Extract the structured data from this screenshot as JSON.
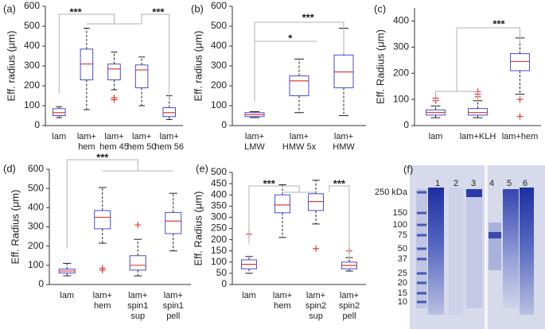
{
  "chart_data": [
    {
      "type": "box",
      "label": "(a)",
      "ylabel": "Eff. radius (μm)",
      "box_color": "#4a4ad8",
      "median_color": "#e33b3b",
      "categories": [
        "lam",
        "lam+\nhem",
        "lam+\nhem 45",
        "lam+\nhem 50",
        "lam+\nhem 56"
      ],
      "ylim": [
        0,
        600
      ],
      "yticks": [
        0,
        100,
        200,
        300,
        400,
        500,
        600
      ],
      "annotations": [
        "***",
        "***"
      ],
      "boxes": [
        {
          "whisker_low": 40,
          "q1": 50,
          "median": 65,
          "q3": 85,
          "whisker_high": 95,
          "outliers": []
        },
        {
          "whisker_low": 80,
          "q1": 230,
          "median": 310,
          "q3": 385,
          "whisker_high": 490,
          "outliers": []
        },
        {
          "whisker_low": 180,
          "q1": 230,
          "median": 285,
          "q3": 310,
          "whisker_high": 370,
          "outliers": [
            130,
            140
          ]
        },
        {
          "whisker_low": 100,
          "q1": 190,
          "median": 280,
          "q3": 305,
          "whisker_high": 345,
          "outliers": []
        },
        {
          "whisker_low": 30,
          "q1": 45,
          "median": 65,
          "q3": 90,
          "whisker_high": 150,
          "outliers": []
        }
      ]
    },
    {
      "type": "box",
      "label": "(b)",
      "ylabel": "Eff. radius (μm)",
      "box_color": "#4a4ad8",
      "median_color": "#e33b3b",
      "categories": [
        "lam+\nLMW",
        "lam+\nHMW 5x",
        "lam+\nHMW"
      ],
      "ylim": [
        0,
        600
      ],
      "yticks": [
        0,
        100,
        200,
        300,
        400,
        500,
        600
      ],
      "annotations": [
        "***",
        "*"
      ],
      "boxes": [
        {
          "whisker_low": 40,
          "q1": 45,
          "median": 55,
          "q3": 65,
          "whisker_high": 70,
          "outliers": []
        },
        {
          "whisker_low": 65,
          "q1": 150,
          "median": 225,
          "q3": 250,
          "whisker_high": 335,
          "outliers": []
        },
        {
          "whisker_low": 50,
          "q1": 190,
          "median": 270,
          "q3": 355,
          "whisker_high": 490,
          "outliers": []
        }
      ]
    },
    {
      "type": "box",
      "label": "(c)",
      "ylabel": "Eff. Radius (μm)",
      "box_color": "#4a4ad8",
      "median_color": "#e33b3b",
      "categories": [
        "lam",
        "lam+KLH",
        "lam+hem"
      ],
      "ylim": [
        0,
        450
      ],
      "yticks": [
        0,
        100,
        200,
        300,
        400
      ],
      "annotations": [
        "***"
      ],
      "boxes": [
        {
          "whisker_low": 30,
          "q1": 40,
          "median": 50,
          "q3": 60,
          "whisker_high": 75,
          "outliers": [
            95,
            105
          ]
        },
        {
          "whisker_low": 30,
          "q1": 40,
          "median": 50,
          "q3": 65,
          "whisker_high": 95,
          "outliers": [
            110,
            120,
            130
          ]
        },
        {
          "whisker_low": 120,
          "q1": 210,
          "median": 245,
          "q3": 275,
          "whisker_high": 335,
          "outliers": [
            100,
            35
          ]
        }
      ]
    },
    {
      "type": "box",
      "label": "(d)",
      "ylabel": "Eff. Radius (μm)",
      "box_color": "#4a4ad8",
      "median_color": "#e33b3b",
      "categories": [
        "lam",
        "lam+\nhem",
        "lam+\nspin1\nsup",
        "lam+\nspin1\npell"
      ],
      "ylim": [
        0,
        600
      ],
      "yticks": [
        0,
        100,
        200,
        300,
        400,
        500,
        600
      ],
      "annotations": [
        "***"
      ],
      "boxes": [
        {
          "whisker_low": 45,
          "q1": 60,
          "median": 70,
          "q3": 80,
          "whisker_high": 110,
          "outliers": []
        },
        {
          "whisker_low": 215,
          "q1": 290,
          "median": 350,
          "q3": 385,
          "whisker_high": 505,
          "outliers": [
            75,
            85
          ]
        },
        {
          "whisker_low": 45,
          "q1": 75,
          "median": 100,
          "q3": 150,
          "whisker_high": 235,
          "outliers": [
            310
          ]
        },
        {
          "whisker_low": 175,
          "q1": 265,
          "median": 330,
          "q3": 375,
          "whisker_high": 475,
          "outliers": []
        }
      ]
    },
    {
      "type": "box",
      "label": "(e)",
      "ylabel": "Eff. Radius (μm)",
      "box_color": "#4a4ad8",
      "median_color": "#e33b3b",
      "categories": [
        "lam",
        "lam+\nhem",
        "lam+\nspin2\nsup",
        "lam+\nspin2\npell"
      ],
      "ylim": [
        0,
        500
      ],
      "yticks": [
        0,
        50,
        100,
        150,
        200,
        250,
        300,
        350,
        400,
        450,
        500
      ],
      "annotations": [
        "***",
        "***"
      ],
      "boxes": [
        {
          "whisker_low": 50,
          "q1": 70,
          "median": 90,
          "q3": 110,
          "whisker_high": 125,
          "outliers": [
            225
          ]
        },
        {
          "whisker_low": 210,
          "q1": 320,
          "median": 355,
          "q3": 400,
          "whisker_high": 445,
          "outliers": []
        },
        {
          "whisker_low": 270,
          "q1": 330,
          "median": 370,
          "q3": 405,
          "whisker_high": 465,
          "outliers": [
            160
          ]
        },
        {
          "whisker_low": 60,
          "q1": 70,
          "median": 85,
          "q3": 100,
          "whisker_high": 120,
          "outliers": [
            150
          ]
        }
      ]
    }
  ],
  "gel": {
    "label": "(f)",
    "lanes": [
      "1",
      "2",
      "3",
      "4",
      "5",
      "6"
    ],
    "markers": [
      "250 kDa",
      "150",
      "100",
      "75",
      "50",
      "37",
      "25",
      "20",
      "15",
      "10"
    ]
  }
}
